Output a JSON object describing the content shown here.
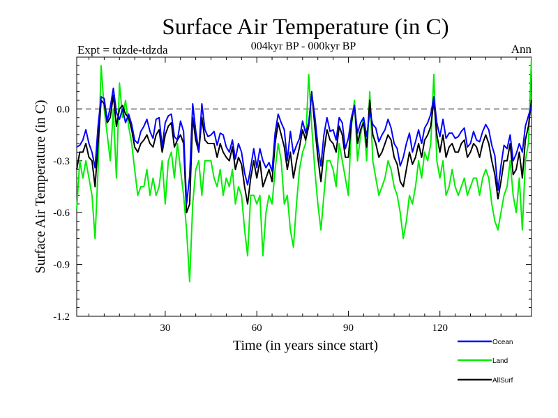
{
  "chart_data": {
    "type": "line",
    "title": "Surface Air Temperature (in C)",
    "subtitle": "004kyr BP - 000kyr BP",
    "left_note": "Expt = tdzde-tdzda",
    "right_note": "Ann",
    "xlabel": "Time (in years since start)",
    "ylabel": "Surface Air Temperature (in C)",
    "xlim": [
      1,
      150
    ],
    "ylim": [
      -1.2,
      0.3
    ],
    "xticks": [
      30,
      60,
      90,
      120
    ],
    "xtick_labels": [
      "30",
      "60",
      "90",
      "120"
    ],
    "yticks": [
      0.0,
      -0.3,
      -0.6,
      -0.9,
      -1.2
    ],
    "ytick_labels": [
      "0.0",
      "-0.3",
      "-0.6",
      "-0.9",
      "-1.2"
    ],
    "reference_line": {
      "y": 0.0,
      "style": "dashed"
    },
    "legend_position": "bottom-right, below plot",
    "series": [
      {
        "name": "Ocean",
        "color": "#0000ff",
        "values": [
          -0.22,
          -0.21,
          -0.18,
          -0.12,
          -0.2,
          -0.25,
          -0.34,
          -0.1,
          0.07,
          0.06,
          -0.07,
          0.01,
          0.12,
          -0.02,
          -0.06,
          0.0,
          -0.08,
          -0.03,
          -0.09,
          -0.18,
          -0.2,
          -0.13,
          -0.1,
          -0.06,
          -0.13,
          -0.17,
          -0.06,
          -0.05,
          -0.22,
          -0.08,
          -0.04,
          -0.03,
          -0.16,
          -0.18,
          -0.07,
          -0.13,
          -0.55,
          -0.39,
          0.03,
          -0.13,
          -0.24,
          0.03,
          -0.12,
          -0.16,
          -0.15,
          -0.13,
          -0.21,
          -0.14,
          -0.15,
          -0.22,
          -0.25,
          -0.18,
          -0.29,
          -0.2,
          -0.25,
          -0.37,
          -0.44,
          -0.34,
          -0.23,
          -0.34,
          -0.23,
          -0.3,
          -0.34,
          -0.31,
          -0.36,
          -0.14,
          -0.03,
          -0.08,
          -0.12,
          -0.3,
          -0.13,
          -0.26,
          -0.21,
          -0.17,
          -0.07,
          -0.14,
          -0.08,
          0.09,
          -0.04,
          -0.21,
          -0.33,
          -0.15,
          -0.05,
          -0.13,
          -0.12,
          -0.18,
          -0.05,
          -0.08,
          -0.23,
          -0.17,
          -0.05,
          0.02,
          -0.14,
          -0.08,
          -0.05,
          -0.16,
          -0.02,
          -0.09,
          -0.11,
          -0.19,
          -0.15,
          -0.12,
          -0.06,
          -0.11,
          -0.2,
          -0.23,
          -0.33,
          -0.28,
          -0.2,
          -0.14,
          -0.25,
          -0.19,
          -0.12,
          -0.2,
          -0.11,
          -0.08,
          -0.03,
          0.07,
          -0.08,
          -0.16,
          -0.06,
          -0.17,
          -0.14,
          -0.14,
          -0.17,
          -0.16,
          -0.13,
          -0.11,
          -0.22,
          -0.2,
          -0.13,
          -0.18,
          -0.19,
          -0.13,
          -0.09,
          -0.12,
          -0.21,
          -0.27,
          -0.47,
          -0.33,
          -0.21,
          -0.23,
          -0.15,
          -0.3,
          -0.26,
          -0.2,
          -0.25,
          -0.1,
          -0.04,
          0.02
        ]
      },
      {
        "name": "Land",
        "color": "#00ee00",
        "values": [
          -0.58,
          -0.3,
          -0.4,
          -0.3,
          -0.4,
          -0.5,
          -0.75,
          -0.35,
          0.25,
          0.0,
          -0.15,
          -0.3,
          0.0,
          -0.4,
          0.15,
          -0.05,
          0.05,
          -0.1,
          -0.2,
          -0.35,
          -0.5,
          -0.45,
          -0.45,
          -0.35,
          -0.5,
          -0.4,
          -0.5,
          -0.45,
          -0.3,
          -0.55,
          -0.3,
          -0.25,
          -0.4,
          -0.2,
          -0.35,
          -0.5,
          -0.7,
          -1.0,
          -0.55,
          -0.35,
          -0.3,
          -0.5,
          -0.3,
          -0.3,
          -0.3,
          -0.4,
          -0.45,
          -0.35,
          -0.5,
          -0.4,
          -0.45,
          -0.35,
          -0.55,
          -0.45,
          -0.5,
          -0.7,
          -0.85,
          -0.5,
          -0.5,
          -0.55,
          -0.5,
          -0.85,
          -0.6,
          -0.5,
          -0.55,
          -0.35,
          -0.2,
          -0.3,
          -0.55,
          -0.5,
          -0.7,
          -0.8,
          -0.55,
          -0.35,
          -0.25,
          -0.2,
          0.2,
          -0.1,
          -0.35,
          -0.55,
          -0.7,
          -0.5,
          -0.3,
          -0.3,
          -0.35,
          -0.45,
          -0.2,
          -0.3,
          -0.4,
          -0.5,
          -0.1,
          0.05,
          -0.3,
          -0.15,
          -0.05,
          -0.3,
          0.1,
          -0.3,
          -0.4,
          -0.5,
          -0.45,
          -0.4,
          -0.3,
          -0.35,
          -0.45,
          -0.5,
          -0.6,
          -0.75,
          -0.65,
          -0.5,
          -0.55,
          -0.45,
          -0.3,
          -0.4,
          -0.25,
          -0.3,
          -0.2,
          0.2,
          -0.3,
          -0.4,
          -0.3,
          -0.5,
          -0.45,
          -0.35,
          -0.45,
          -0.5,
          -0.45,
          -0.4,
          -0.5,
          -0.45,
          -0.4,
          -0.4,
          -0.5,
          -0.4,
          -0.35,
          -0.4,
          -0.55,
          -0.65,
          -0.7,
          -0.6,
          -0.5,
          -0.45,
          -0.3,
          -0.5,
          -0.6,
          -0.4,
          -0.7,
          -0.3,
          -0.2,
          0.3
        ]
      },
      {
        "name": "AllSurf",
        "color": "#000000",
        "values": [
          -0.35,
          -0.25,
          -0.25,
          -0.2,
          -0.28,
          -0.3,
          -0.45,
          -0.2,
          0.05,
          0.03,
          -0.08,
          -0.05,
          0.08,
          -0.1,
          0.0,
          0.02,
          -0.03,
          -0.05,
          -0.12,
          -0.22,
          -0.25,
          -0.2,
          -0.18,
          -0.15,
          -0.2,
          -0.22,
          -0.15,
          -0.12,
          -0.25,
          -0.15,
          -0.1,
          -0.08,
          -0.22,
          -0.18,
          -0.15,
          -0.2,
          -0.6,
          -0.55,
          -0.05,
          -0.18,
          -0.25,
          -0.05,
          -0.18,
          -0.2,
          -0.2,
          -0.2,
          -0.28,
          -0.2,
          -0.25,
          -0.28,
          -0.3,
          -0.22,
          -0.35,
          -0.28,
          -0.32,
          -0.45,
          -0.55,
          -0.4,
          -0.3,
          -0.4,
          -0.3,
          -0.45,
          -0.4,
          -0.35,
          -0.42,
          -0.2,
          -0.08,
          -0.15,
          -0.22,
          -0.35,
          -0.25,
          -0.4,
          -0.3,
          -0.22,
          -0.12,
          -0.18,
          -0.1,
          0.1,
          -0.1,
          -0.28,
          -0.42,
          -0.25,
          -0.12,
          -0.18,
          -0.2,
          -0.25,
          -0.1,
          -0.15,
          -0.28,
          -0.28,
          -0.08,
          0.02,
          -0.2,
          -0.12,
          -0.08,
          -0.22,
          0.05,
          -0.15,
          -0.2,
          -0.28,
          -0.25,
          -0.2,
          -0.15,
          -0.18,
          -0.28,
          -0.32,
          -0.42,
          -0.45,
          -0.35,
          -0.25,
          -0.32,
          -0.28,
          -0.2,
          -0.28,
          -0.18,
          -0.15,
          -0.1,
          0.05,
          -0.15,
          -0.25,
          -0.15,
          -0.28,
          -0.22,
          -0.2,
          -0.25,
          -0.25,
          -0.2,
          -0.18,
          -0.28,
          -0.25,
          -0.2,
          -0.22,
          -0.28,
          -0.2,
          -0.15,
          -0.2,
          -0.3,
          -0.38,
          -0.52,
          -0.42,
          -0.3,
          -0.3,
          -0.2,
          -0.38,
          -0.35,
          -0.25,
          -0.4,
          -0.18,
          -0.1,
          0.05
        ]
      }
    ]
  }
}
